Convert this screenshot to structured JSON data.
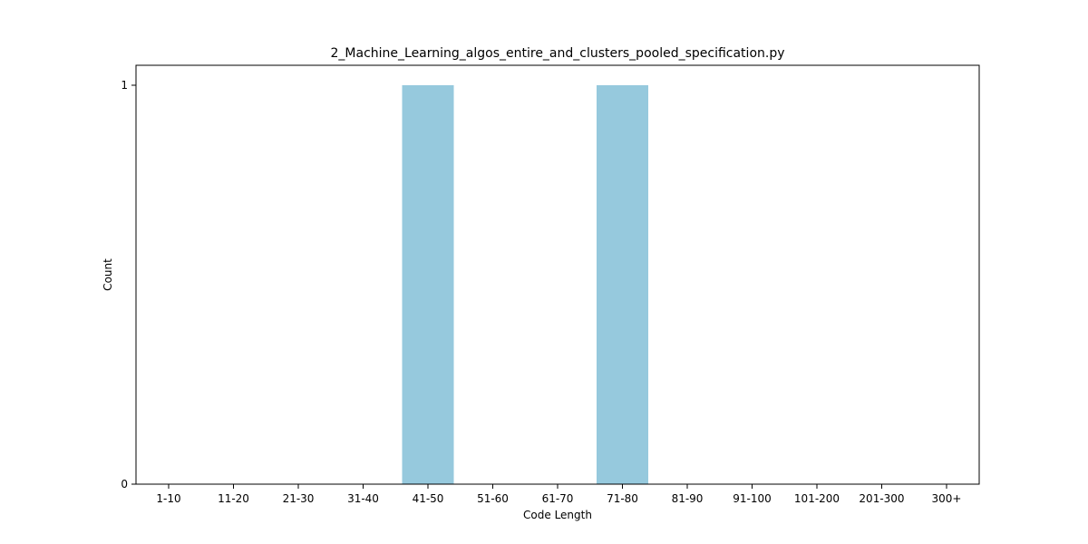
{
  "chart_data": {
    "type": "bar",
    "title": "2_Machine_Learning_algos_entire_and_clusters_pooled_specification.py",
    "xlabel": "Code Length",
    "ylabel": "Count",
    "categories": [
      "1-10",
      "11-20",
      "21-30",
      "31-40",
      "41-50",
      "51-60",
      "61-70",
      "71-80",
      "81-90",
      "91-100",
      "101-200",
      "201-300",
      "300+"
    ],
    "values": [
      0,
      0,
      0,
      0,
      1,
      0,
      0,
      1,
      0,
      0,
      0,
      0,
      0
    ],
    "ylim": [
      0,
      1.05
    ],
    "yticks": [
      0,
      1
    ],
    "bar_color": "#96c9dd",
    "grid": false,
    "legend": "none"
  }
}
